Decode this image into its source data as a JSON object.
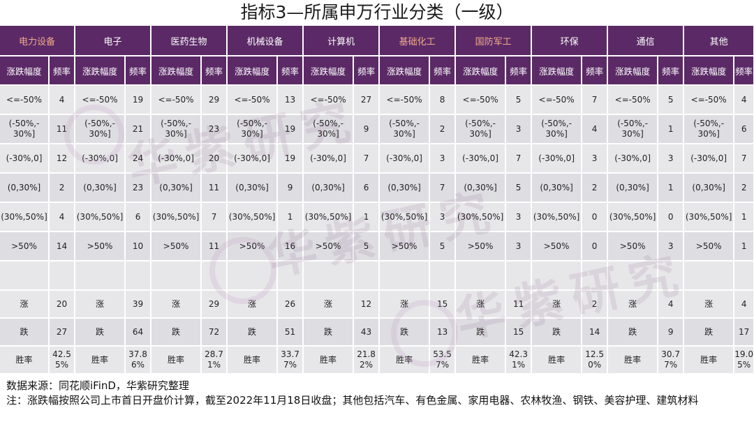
{
  "title": "指标3—所属申万行业分类（一级）",
  "industries": [
    {
      "name": "电力设备",
      "highlight": true
    },
    {
      "name": "电子",
      "highlight": false
    },
    {
      "name": "医药生物",
      "highlight": false
    },
    {
      "name": "机械设备",
      "highlight": false
    },
    {
      "name": "计算机",
      "highlight": false
    },
    {
      "name": "基础化工",
      "highlight": true
    },
    {
      "name": "国防军工",
      "highlight": true
    },
    {
      "name": "环保",
      "highlight": false
    },
    {
      "name": "通信",
      "highlight": false
    },
    {
      "name": "其他",
      "highlight": false
    }
  ],
  "sub_headers": {
    "range": "涨跌幅度",
    "freq": "频率"
  },
  "range_labels": [
    "<=-50%",
    "(-50%,-30%]",
    "(-30%,0]",
    "(0,30%]",
    "(30%,50%]",
    ">50%"
  ],
  "range_display": [
    "<=-50%",
    "(-50%,-\n30%]",
    "(-30%,0]",
    "(0,30%]",
    "(30%,50%]",
    ">50%"
  ],
  "frequencies": [
    [
      4,
      11,
      12,
      2,
      4,
      14
    ],
    [
      19,
      21,
      24,
      23,
      6,
      10
    ],
    [
      29,
      23,
      20,
      11,
      7,
      11
    ],
    [
      13,
      19,
      19,
      9,
      1,
      16
    ],
    [
      27,
      9,
      7,
      6,
      1,
      5
    ],
    [
      8,
      2,
      3,
      7,
      3,
      5
    ],
    [
      5,
      3,
      7,
      5,
      3,
      3
    ],
    [
      7,
      4,
      3,
      2,
      0,
      0
    ],
    [
      5,
      1,
      3,
      1,
      0,
      3
    ],
    [
      4,
      6,
      7,
      2,
      1,
      1
    ]
  ],
  "summary_labels": {
    "rise": "涨",
    "fall": "跌",
    "win": "胜率"
  },
  "rise": [
    20,
    39,
    29,
    26,
    12,
    15,
    11,
    2,
    4,
    4
  ],
  "fall": [
    27,
    64,
    72,
    51,
    43,
    13,
    15,
    14,
    9,
    17
  ],
  "win_rate": [
    "42.55%",
    "37.86%",
    "28.71%",
    "33.77%",
    "21.82%",
    "53.57%",
    "42.31%",
    "12.50%",
    "30.77%",
    "19.05%"
  ],
  "win_rate_display": [
    "42.5\n5%",
    "37.8\n6%",
    "28.7\n1%",
    "33.7\n7%",
    "21.8\n2%",
    "53.5\n7%",
    "42.3\n1%",
    "12.5\n0%",
    "30.7\n7%",
    "19.0\n5%"
  ],
  "footer": {
    "source": "数据来源：同花顺iFinD，华紫研究整理",
    "note": "注：涨跌幅按照公司上市首日开盘价计算，截至2022年11月18日收盘；其他包括汽车、有色金属、家用电器、农林牧渔、钢铁、美容护理、建筑材料"
  },
  "watermark": "华紫研究"
}
